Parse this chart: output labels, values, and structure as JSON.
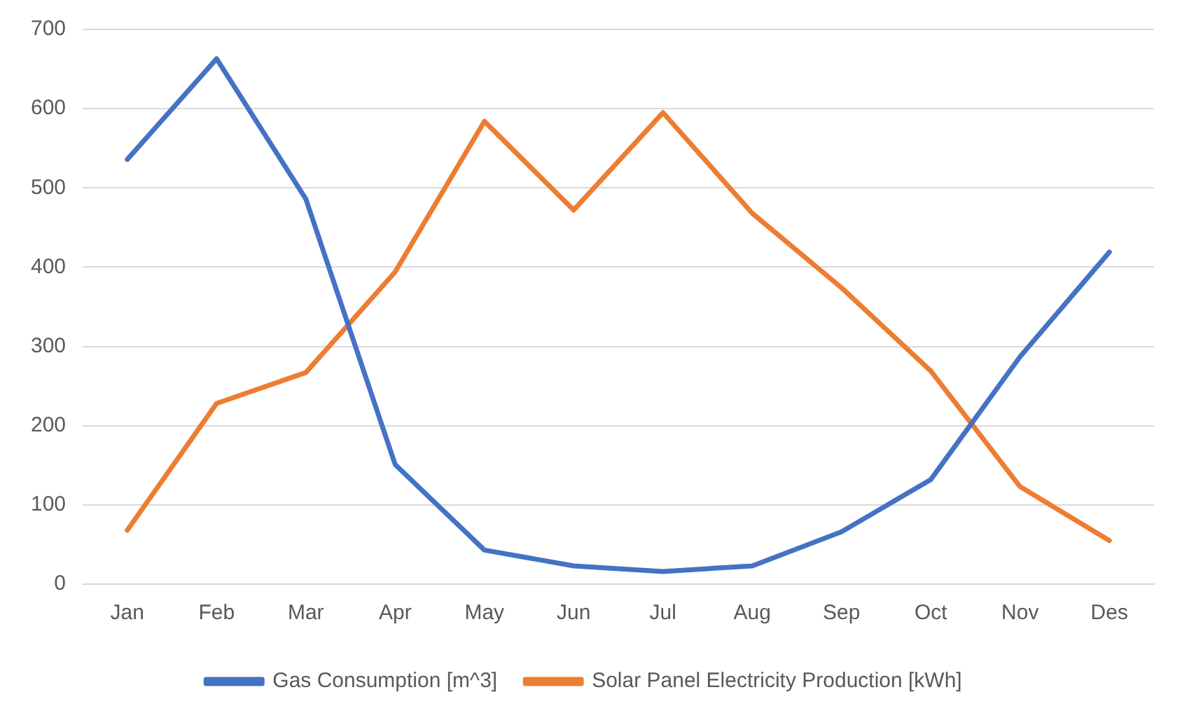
{
  "chart_data": {
    "type": "line",
    "categories": [
      "Jan",
      "Feb",
      "Mar",
      "Apr",
      "May",
      "Jun",
      "Jul",
      "Aug",
      "Sep",
      "Oct",
      "Nov",
      "Des"
    ],
    "series": [
      {
        "name": "Gas Consumption [m^3]",
        "color": "#4472c4",
        "values": [
          536,
          663,
          486,
          151,
          43,
          23,
          16,
          23,
          66,
          132,
          287,
          419
        ]
      },
      {
        "name": "Solar Panel Electricity Production [kWh]",
        "color": "#ed7d31",
        "values": [
          68,
          228,
          267,
          394,
          584,
          472,
          595,
          468,
          374,
          269,
          123,
          55
        ]
      }
    ],
    "ylim": [
      0,
      700
    ],
    "yticks": [
      0,
      100,
      200,
      300,
      400,
      500,
      600,
      700
    ],
    "grid": "y",
    "legend": "bottom",
    "marker": "none",
    "line_style": "solid"
  }
}
